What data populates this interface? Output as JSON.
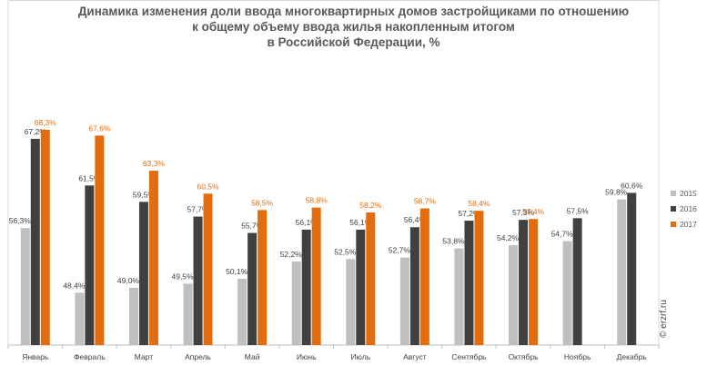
{
  "title": {
    "line1": "Динамика изменения доли ввода многоквартирных домов застройщиками по отношению",
    "line2": "к общему объему ввода жилья накопленным итогом",
    "line3": "в Российской  Федерации, %"
  },
  "watermark": "© erzrf.ru",
  "chart_data": {
    "type": "bar",
    "title": "Динамика изменения доли ввода многоквартирных домов застройщиками по отношению к общему объему ввода жилья накопленным итогом в Российской  Федерации, %",
    "categories": [
      "Январь",
      "Февраль",
      "Март",
      "Апрель",
      "Май",
      "Июнь",
      "Июль",
      "Август",
      "Сентябрь",
      "Октябрь",
      "Ноябрь",
      "Декабрь"
    ],
    "series": [
      {
        "name": "2015",
        "color": "#bfbfbf",
        "values": [
          56.3,
          48.4,
          49.0,
          49.5,
          50.1,
          52.2,
          52.5,
          52.7,
          53.8,
          54.2,
          54.7,
          59.8
        ],
        "labels": [
          "56,3%",
          "48,4%",
          "49,0%",
          "49,5%",
          "50,1%",
          "52,2%",
          "52,5%",
          "52,7%",
          "53,8%",
          "54,2%",
          "54,7%",
          "59,8%"
        ]
      },
      {
        "name": "2016",
        "color": "#404040",
        "values": [
          67.2,
          61.5,
          59.5,
          57.7,
          55.7,
          56.1,
          56.1,
          56.4,
          57.2,
          57.3,
          57.5,
          60.6
        ],
        "labels": [
          "67,2%",
          "61,5%",
          "59,5%",
          "57,7%",
          "55,7%",
          "56,1%",
          "56,1%",
          "56,4%",
          "57,2%",
          "57,3%",
          "57,5%",
          "60,6%"
        ]
      },
      {
        "name": "2017",
        "color": "#e46c0a",
        "values": [
          68.3,
          67.6,
          63.3,
          60.5,
          58.5,
          58.8,
          58.2,
          58.7,
          58.4,
          57.4,
          null,
          null
        ],
        "labels": [
          "68,3%",
          "67,6%",
          "63,3%",
          "60,5%",
          "58,5%",
          "58,8%",
          "58,2%",
          "58,7%",
          "58,4%",
          "57,4%",
          "",
          ""
        ]
      }
    ],
    "legend_position": "right",
    "grid": false
  }
}
